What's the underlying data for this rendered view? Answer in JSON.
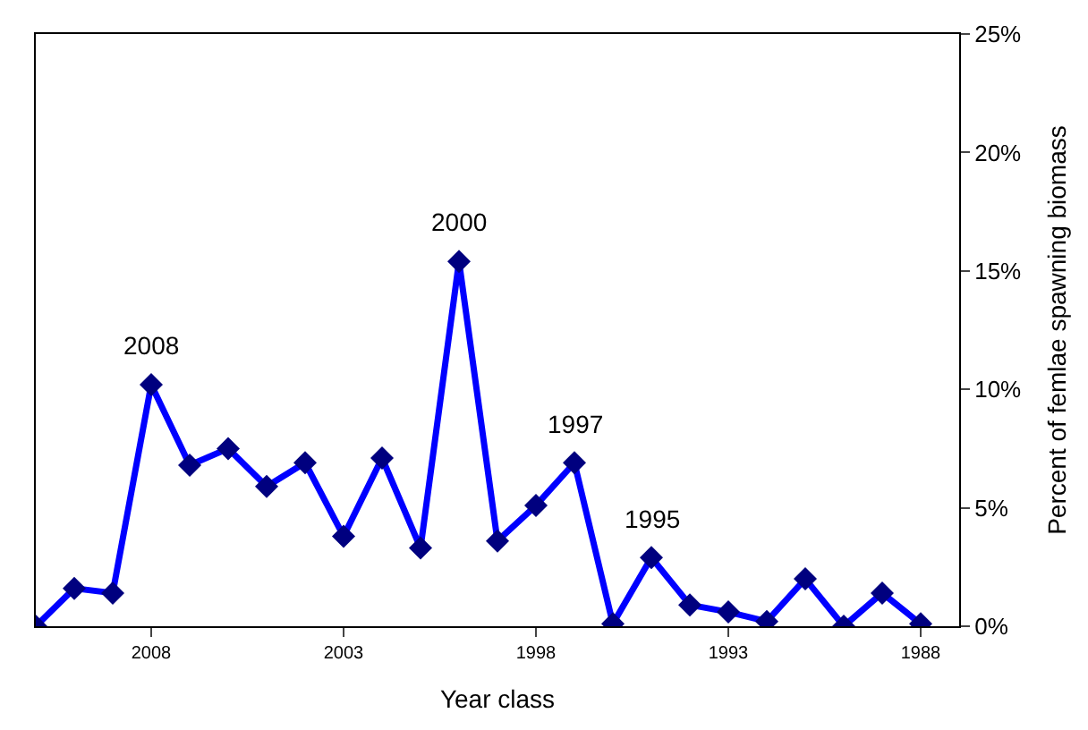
{
  "chart_data": {
    "type": "line",
    "xlabel": "Year class",
    "ylabel": "Percent of femlae spawning biomass",
    "x": [
      2011,
      2010,
      2009,
      2008,
      2007,
      2006,
      2005,
      2004,
      2003,
      2002,
      2001,
      2000,
      1999,
      1998,
      1997,
      1996,
      1995,
      1994,
      1993,
      1992,
      1991,
      1990,
      1989,
      1988
    ],
    "series": [
      {
        "color": "#0000ff",
        "values": [
          0,
          1.6,
          1.4,
          10.2,
          6.8,
          7.5,
          5.9,
          6.9,
          3.8,
          7.1,
          3.3,
          15.4,
          3.6,
          5.1,
          6.9,
          0.1,
          2.9,
          0.9,
          0.6,
          0.2,
          2.0,
          0,
          1.4,
          0.1
        ]
      }
    ],
    "xlim": [
      2011,
      1987
    ],
    "xticks": [
      2008,
      2003,
      1998,
      1993,
      1988
    ],
    "ylim": [
      0,
      25
    ],
    "yticks": [
      {
        "value": 0,
        "label": "0%"
      },
      {
        "value": 5,
        "label": "5%"
      },
      {
        "value": 10,
        "label": "10%"
      },
      {
        "value": 15,
        "label": "15%"
      },
      {
        "value": 20,
        "label": "20%"
      },
      {
        "value": 25,
        "label": "25%"
      }
    ],
    "annotations": [
      {
        "text": "2008",
        "x": 2008,
        "y": 10.2
      },
      {
        "text": "2000",
        "x": 2000,
        "y": 15.4
      },
      {
        "text": "1997",
        "x": 1997,
        "y": 6.9
      },
      {
        "text": "1995",
        "x": 1995,
        "y": 2.9
      }
    ],
    "marker": "diamond",
    "line_style": "solid",
    "grid": false,
    "legend": false
  }
}
